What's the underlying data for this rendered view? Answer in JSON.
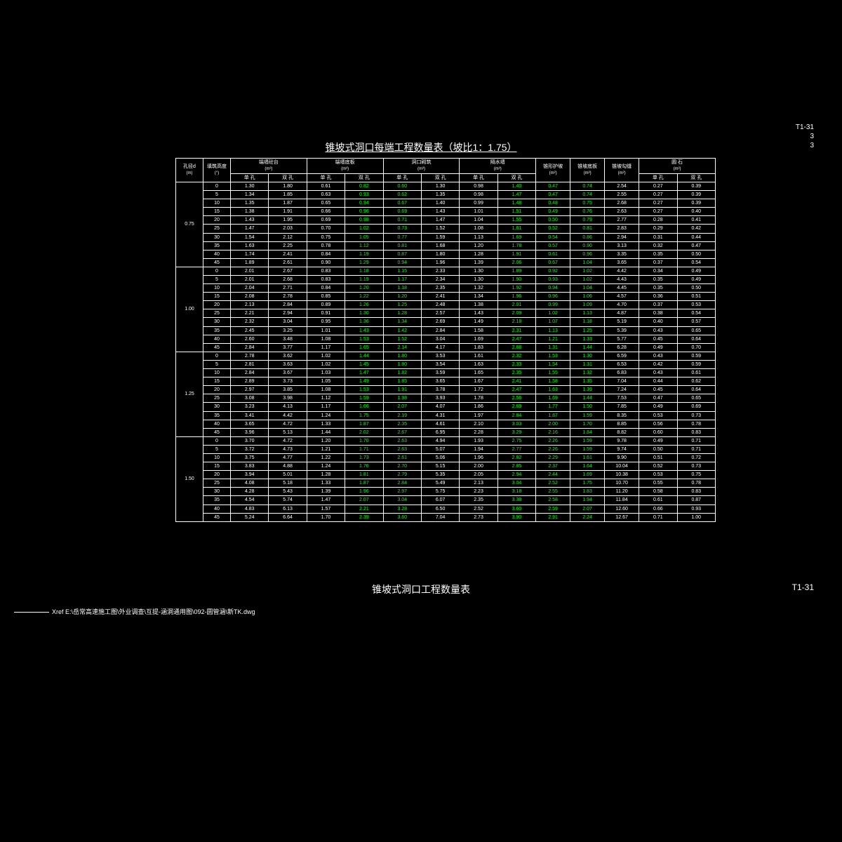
{
  "topRight": {
    "line1": "T1-31",
    "line2": "3",
    "line3": "3"
  },
  "title": "锥坡式洞口每端工程数量表（坡比1：1.75）",
  "footerTitle": "锥坡式洞口工程数量表",
  "footerRight": "T1-31",
  "xref": "Xref E:\\岳常高速施工图\\外业调查\\互提-涵洞通用图\\092-圆管涵\\新TK.dwg",
  "headers": {
    "h1": "孔径d",
    "h1u": "(m)",
    "h2": "填筑高度",
    "h2u": "(°)",
    "h3": "端墙砼台",
    "h3u": "(m³)",
    "h4": "端墙底板",
    "h4u": "(m³)",
    "h5": "洞口砌筑",
    "h5u": "(m³)",
    "h6": "隔水墙",
    "h6u": "(m³)",
    "h7": "锥形护坡",
    "h7u": "(m²)",
    "h8": "锥坡底板",
    "h8u": "(m³)",
    "h9": "锥坡勾缝",
    "h9u": "(m²)",
    "h10": "圆 石",
    "h10u": "(m³)",
    "sub1": "单 孔",
    "sub2": "双 孔"
  },
  "groups": [
    {
      "d": "0.75",
      "rows": [
        [
          "0",
          "1.30",
          "1.80",
          "0.61",
          "0.82",
          "0.60",
          "1.30",
          "0.98",
          "1.40",
          "0.47",
          "0.74",
          "2.54",
          "0.27",
          "0.39"
        ],
        [
          "5",
          "1.34",
          "1.85",
          "0.63",
          "0.93",
          "0.62",
          "1.35",
          "0.98",
          "1.47",
          "0.47",
          "0.74",
          "2.55",
          "0.27",
          "0.39"
        ],
        [
          "10",
          "1.35",
          "1.87",
          "0.65",
          "0.94",
          "0.67",
          "1.40",
          "0.99",
          "1.48",
          "0.48",
          "0.75",
          "2.68",
          "0.27",
          "0.39"
        ],
        [
          "15",
          "1.38",
          "1.91",
          "0.66",
          "0.96",
          "0.69",
          "1.43",
          "1.01",
          "1.51",
          "0.49",
          "0.76",
          "2.63",
          "0.27",
          "0.40"
        ],
        [
          "20",
          "1.43",
          "1.95",
          "0.69",
          "0.98",
          "0.71",
          "1.47",
          "1.04",
          "1.55",
          "0.50",
          "0.79",
          "2.77",
          "0.28",
          "0.41"
        ],
        [
          "25",
          "1.47",
          "2.03",
          "0.70",
          "1.02",
          "0.73",
          "1.52",
          "1.08",
          "1.61",
          "0.52",
          "0.81",
          "2.83",
          "0.29",
          "0.42"
        ],
        [
          "30",
          "1.54",
          "2.12",
          "0.75",
          "1.05",
          "0.77",
          "1.59",
          "1.13",
          "1.69",
          "0.54",
          "0.86",
          "2.94",
          "0.31",
          "0.44"
        ],
        [
          "35",
          "1.63",
          "2.25",
          "0.78",
          "1.12",
          "0.81",
          "1.68",
          "1.20",
          "1.78",
          "0.57",
          "0.90",
          "3.13",
          "0.32",
          "0.47"
        ],
        [
          "40",
          "1.74",
          "2.41",
          "0.84",
          "1.19",
          "0.87",
          "1.80",
          "1.28",
          "1.91",
          "0.61",
          "0.96",
          "3.35",
          "0.35",
          "0.50"
        ],
        [
          "45",
          "1.89",
          "2.61",
          "0.90",
          "1.29",
          "0.94",
          "1.96",
          "1.39",
          "2.06",
          "0.67",
          "1.04",
          "3.65",
          "0.37",
          "0.54"
        ]
      ]
    },
    {
      "d": "1.00",
      "rows": [
        [
          "0",
          "2.01",
          "2.67",
          "0.83",
          "1.18",
          "1.15",
          "2.33",
          "1.30",
          "1.89",
          "0.92",
          "1.02",
          "4.42",
          "0.34",
          "0.49"
        ],
        [
          "5",
          "2.01",
          "2.68",
          "0.83",
          "1.19",
          "1.17",
          "2.34",
          "1.30",
          "1.90",
          "0.93",
          "1.02",
          "4.43",
          "0.35",
          "0.49"
        ],
        [
          "10",
          "2.04",
          "2.71",
          "0.84",
          "1.20",
          "1.18",
          "2.35",
          "1.32",
          "1.92",
          "0.94",
          "1.04",
          "4.45",
          "0.35",
          "0.50"
        ],
        [
          "15",
          "2.08",
          "2.78",
          "0.85",
          "1.22",
          "1.20",
          "2.41",
          "1.34",
          "1.96",
          "0.96",
          "1.06",
          "4.57",
          "0.36",
          "0.51"
        ],
        [
          "20",
          "2.13",
          "2.84",
          "0.89",
          "1.26",
          "1.25",
          "2.48",
          "1.38",
          "2.01",
          "0.99",
          "1.09",
          "4.70",
          "0.37",
          "0.53"
        ],
        [
          "25",
          "2.21",
          "2.94",
          "0.91",
          "1.30",
          "1.28",
          "2.57",
          "1.43",
          "2.09",
          "1.02",
          "1.13",
          "4.87",
          "0.38",
          "0.54"
        ],
        [
          "30",
          "2.32",
          "3.04",
          "0.95",
          "1.36",
          "1.34",
          "2.69",
          "1.49",
          "2.18",
          "1.07",
          "1.18",
          "5.19",
          "0.40",
          "0.57"
        ],
        [
          "35",
          "2.45",
          "3.25",
          "1.01",
          "1.43",
          "1.42",
          "2.84",
          "1.58",
          "2.31",
          "1.13",
          "1.25",
          "5.39",
          "0.43",
          "0.65"
        ],
        [
          "40",
          "2.60",
          "3.48",
          "1.08",
          "1.53",
          "1.52",
          "3.04",
          "1.69",
          "2.47",
          "1.21",
          "1.33",
          "5.77",
          "0.45",
          "0.64"
        ],
        [
          "45",
          "2.84",
          "3.77",
          "1.17",
          "1.65",
          "2.14",
          "4.17",
          "1.83",
          "2.68",
          "1.31",
          "1.44",
          "6.28",
          "0.49",
          "0.70"
        ]
      ]
    },
    {
      "d": "1.25",
      "rows": [
        [
          "0",
          "2.78",
          "3.62",
          "1.02",
          "1.44",
          "1.80",
          "3.53",
          "1.61",
          "2.32",
          "1.53",
          "1.30",
          "6.59",
          "0.43",
          "0.59"
        ],
        [
          "5",
          "2.81",
          "3.63",
          "1.02",
          "1.45",
          "1.80",
          "3.54",
          "1.63",
          "2.33",
          "1.54",
          "1.31",
          "6.53",
          "0.42",
          "0.59"
        ],
        [
          "10",
          "2.84",
          "3.67",
          "1.03",
          "1.47",
          "1.82",
          "3.59",
          "1.65",
          "2.35",
          "1.55",
          "1.32",
          "6.83",
          "0.43",
          "0.61"
        ],
        [
          "15",
          "2.89",
          "3.73",
          "1.05",
          "1.49",
          "1.85",
          "3.65",
          "1.67",
          "2.41",
          "1.58",
          "1.35",
          "7.04",
          "0.44",
          "0.62"
        ],
        [
          "20",
          "2.97",
          "3.85",
          "1.08",
          "1.53",
          "1.91",
          "3.78",
          "1.72",
          "2.47",
          "1.63",
          "1.39",
          "7.24",
          "0.45",
          "0.64"
        ],
        [
          "25",
          "3.08",
          "3.98",
          "1.12",
          "1.59",
          "1.98",
          "3.93",
          "1.78",
          "2.56",
          "1.69",
          "1.44",
          "7.53",
          "0.47",
          "0.65"
        ],
        [
          "30",
          "3.23",
          "4.13",
          "1.17",
          "1.66",
          "2.07",
          "4.07",
          "1.86",
          "2.69",
          "1.77",
          "1.50",
          "7.85",
          "0.49",
          "0.69"
        ],
        [
          "35",
          "3.41",
          "4.42",
          "1.24",
          "1.75",
          "2.19",
          "4.31",
          "1.97",
          "2.84",
          "1.87",
          "1.59",
          "8.35",
          "0.53",
          "0.73"
        ],
        [
          "40",
          "3.65",
          "4.72",
          "1.33",
          "1.87",
          "2.35",
          "4.61",
          "2.10",
          "3.03",
          "2.00",
          "1.70",
          "8.85",
          "0.56",
          "0.78"
        ],
        [
          "45",
          "3.96",
          "5.13",
          "1.44",
          "2.02",
          "2.67",
          "6.95",
          "2.28",
          "3.29",
          "2.16",
          "1.84",
          "8.82",
          "0.60",
          "0.83"
        ]
      ]
    },
    {
      "d": "1.50",
      "rows": [
        [
          "0",
          "3.70",
          "4.72",
          "1.20",
          "1.70",
          "2.63",
          "4.94",
          "1.93",
          "2.75",
          "2.26",
          "1.59",
          "9.78",
          "0.49",
          "0.71"
        ],
        [
          "5",
          "3.72",
          "4.73",
          "1.21",
          "1.71",
          "2.63",
          "5.07",
          "1.94",
          "2.77",
          "2.26",
          "1.59",
          "9.74",
          "0.50",
          "0.71"
        ],
        [
          "10",
          "3.75",
          "4.77",
          "1.22",
          "1.73",
          "2.61",
          "5.06",
          "1.96",
          "2.82",
          "2.29",
          "1.61",
          "9.90",
          "0.51",
          "0.72"
        ],
        [
          "15",
          "3.83",
          "4.88",
          "1.24",
          "1.76",
          "2.70",
          "5.15",
          "2.00",
          "2.85",
          "2.37",
          "1.64",
          "10.04",
          "0.52",
          "0.73"
        ],
        [
          "20",
          "3.94",
          "5.01",
          "1.28",
          "1.81",
          "2.79",
          "5.35",
          "2.05",
          "2.94",
          "2.44",
          "1.69",
          "10.38",
          "0.53",
          "0.75"
        ],
        [
          "25",
          "4.08",
          "5.18",
          "1.33",
          "1.87",
          "2.84",
          "5.49",
          "2.13",
          "3.04",
          "2.52",
          "1.75",
          "10.70",
          "0.55",
          "0.78"
        ],
        [
          "30",
          "4.28",
          "5.43",
          "1.39",
          "1.96",
          "2.97",
          "5.75",
          "2.23",
          "3.18",
          "2.55",
          "1.83",
          "11.20",
          "0.58",
          "0.83"
        ],
        [
          "35",
          "4.54",
          "5.74",
          "1.47",
          "2.07",
          "3.04",
          "6.07",
          "2.35",
          "3.38",
          "2.58",
          "1.94",
          "11.84",
          "0.61",
          "0.87"
        ],
        [
          "40",
          "4.83",
          "6.13",
          "1.57",
          "2.21",
          "3.28",
          "6.50",
          "2.52",
          "3.60",
          "2.59",
          "2.07",
          "12.60",
          "0.66",
          "0.93"
        ],
        [
          "45",
          "5.24",
          "6.64",
          "1.70",
          "2.39",
          "3.60",
          "7.04",
          "2.73",
          "3.90",
          "2.91",
          "2.24",
          "12.67",
          "0.71",
          "1.00"
        ]
      ]
    }
  ],
  "greenCols": [
    4,
    5,
    8,
    9,
    10
  ],
  "colors": {
    "bg": "#000000",
    "fg": "#ffffff",
    "green": "#00ff00",
    "red": "#ff0000"
  }
}
